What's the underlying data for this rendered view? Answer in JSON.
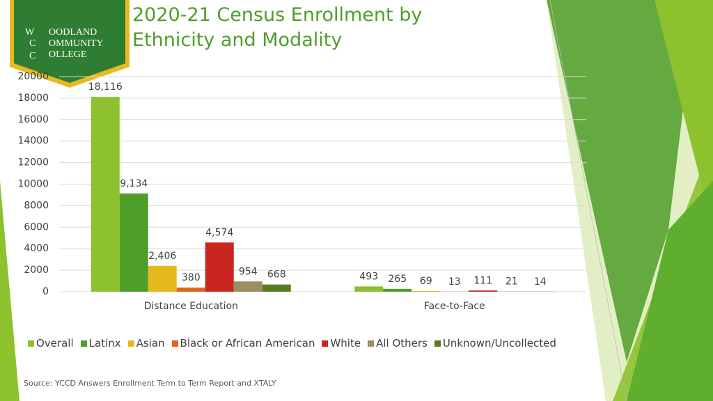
{
  "logo": {
    "letters": [
      "W",
      "C",
      "C"
    ],
    "lines": [
      "OODLAND",
      "OMMUNITY",
      "OLLEGE"
    ]
  },
  "chart_data": {
    "type": "bar",
    "title": "2020-21 Census Enrollment by Ethnicity and Modality",
    "categories": [
      "Distance Education",
      "Face-to-Face"
    ],
    "series": [
      {
        "name": "Overall",
        "color": "#8dc12e",
        "values": [
          18116,
          493
        ],
        "value_labels": [
          "18,116",
          "493"
        ]
      },
      {
        "name": "Latinx",
        "color": "#4e9e2a",
        "values": [
          9134,
          265
        ],
        "value_labels": [
          "9,134",
          "265"
        ]
      },
      {
        "name": "Asian",
        "color": "#e6b820",
        "values": [
          2406,
          69
        ],
        "value_labels": [
          "2,406",
          "69"
        ]
      },
      {
        "name": "Black or African American",
        "color": "#e4631c",
        "values": [
          380,
          13
        ]
      },
      {
        "name": "White",
        "color": "#c8261f",
        "values": [
          4574,
          111
        ],
        "value_labels": [
          "4,574",
          "111"
        ]
      },
      {
        "name": "All Others",
        "color": "#9b8f63",
        "values": [
          954,
          21
        ]
      },
      {
        "name": "Unknown/Uncollected",
        "color": "#5a7a1f",
        "values": [
          668,
          14
        ]
      }
    ],
    "ylim": [
      0,
      20000
    ],
    "yticks": [
      0,
      2000,
      4000,
      6000,
      8000,
      10000,
      12000,
      14000,
      16000,
      18000,
      20000
    ],
    "grid": true,
    "legend": "bottom",
    "source": "Source: YCCD Answers Enrollment Term to Term Report and XTALY"
  }
}
